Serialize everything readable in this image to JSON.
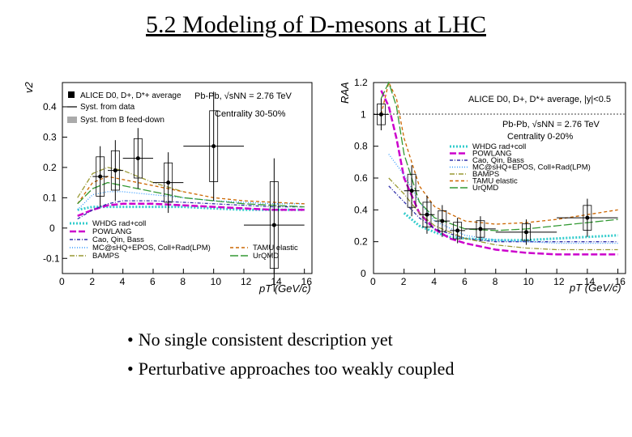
{
  "slide": {
    "title": "5.2 Modeling of D-mesons at LHC",
    "bullets": [
      "No single consistent description yet",
      "Perturbative approaches too weakly coupled"
    ]
  },
  "left_panel": {
    "ylabel": "v2",
    "xlabel": "pT (GeV/c)",
    "yticks": [
      "0.4",
      "0.3",
      "0.2",
      "0.1",
      "0",
      "-0.1"
    ],
    "xticks": [
      "0",
      "2",
      "4",
      "6",
      "8",
      "10",
      "12",
      "14",
      "16"
    ],
    "legend_top": [
      "ALICE D0, D+, D*+ average",
      "Syst. from data",
      "Syst. from B feed-down"
    ],
    "system": "Pb-Pb, √sNN = 2.76 TeV",
    "centrality": "Centrality 30-50%",
    "legend_bottom_left": [
      "WHDG rad+coll",
      "POWLANG",
      "Cao, Qin, Bass",
      "MC@sHQ+EPOS, Coll+Rad(LPM)",
      "BAMPS"
    ],
    "legend_bottom_right": [
      "TAMU elastic",
      "UrQMD"
    ]
  },
  "right_panel": {
    "ylabel": "RAA",
    "xlabel": "pT (GeV/c)",
    "yticks": [
      "1.2",
      "1",
      "0.8",
      "0.6",
      "0.4",
      "0.2",
      "0"
    ],
    "xticks": [
      "0",
      "2",
      "4",
      "6",
      "8",
      "10",
      "12",
      "14",
      "16"
    ],
    "header": "ALICE D0, D+, D*+ average, |y|<0.5",
    "system": "Pb-Pb, √sNN = 2.76 TeV",
    "centrality": "Centrality 0-20%",
    "legend": [
      "WHDG rad+coll",
      "POWLANG",
      "Cao, Qin, Bass",
      "MC@sHQ+EPOS, Coll+Rad(LPM)",
      "BAMPS",
      "TAMU elastic",
      "UrQMD"
    ]
  },
  "chart_data": [
    {
      "type": "scatter",
      "xlabel": "pT (GeV/c)",
      "ylabel": "v2",
      "xlim": [
        0,
        16.5
      ],
      "ylim": [
        -0.15,
        0.48
      ],
      "series": [
        {
          "name": "ALICE D0, D+, D*+ average",
          "points": [
            {
              "x": 2.5,
              "y": 0.17,
              "xerr": 0.5,
              "yerr": 0.05
            },
            {
              "x": 3.5,
              "y": 0.19,
              "xerr": 0.5,
              "yerr": 0.05
            },
            {
              "x": 5.0,
              "y": 0.23,
              "xerr": 1.0,
              "yerr": 0.05
            },
            {
              "x": 7.0,
              "y": 0.15,
              "xerr": 1.0,
              "yerr": 0.05
            },
            {
              "x": 10.0,
              "y": 0.27,
              "xerr": 2.0,
              "yerr": 0.09
            },
            {
              "x": 14.0,
              "y": 0.01,
              "xerr": 2.0,
              "yerr": 0.11
            }
          ]
        },
        {
          "name": "WHDG rad+coll",
          "color": "#33cccc",
          "x": [
            1,
            2,
            4,
            6,
            8,
            10,
            12,
            14,
            16
          ],
          "y": [
            0.06,
            0.07,
            0.07,
            0.07,
            0.07,
            0.065,
            0.06,
            0.06,
            0.06
          ]
        },
        {
          "name": "POWLANG",
          "color": "#cc00cc",
          "x": [
            1,
            2,
            3,
            4,
            6,
            8,
            10,
            12,
            14,
            16
          ],
          "y": [
            0.04,
            0.06,
            0.075,
            0.08,
            0.08,
            0.075,
            0.07,
            0.065,
            0.06,
            0.06
          ]
        },
        {
          "name": "Cao, Qin, Bass",
          "color": "#3333aa",
          "x": [
            1,
            2,
            3,
            4,
            6,
            8,
            10,
            12,
            14,
            16
          ],
          "y": [
            0.03,
            0.06,
            0.08,
            0.09,
            0.09,
            0.085,
            0.08,
            0.075,
            0.07,
            0.07
          ]
        },
        {
          "name": "MC@sHQ+EPOS, Coll+Rad(LPM)",
          "color": "#3399ff",
          "x": [
            1,
            2,
            3,
            4,
            6,
            8,
            10,
            12,
            14,
            16
          ],
          "y": [
            0.06,
            0.11,
            0.12,
            0.12,
            0.11,
            0.1,
            0.09,
            0.085,
            0.08,
            0.08
          ]
        },
        {
          "name": "BAMPS",
          "color": "#999933",
          "x": [
            1,
            2,
            3,
            4,
            5,
            6,
            8
          ],
          "y": [
            0.1,
            0.18,
            0.2,
            0.19,
            0.17,
            0.15,
            0.12
          ]
        },
        {
          "name": "TAMU elastic",
          "color": "#cc6600",
          "x": [
            1,
            2,
            3,
            4,
            6,
            8,
            10,
            12,
            14,
            16
          ],
          "y": [
            0.08,
            0.15,
            0.17,
            0.16,
            0.14,
            0.12,
            0.1,
            0.09,
            0.085,
            0.08
          ]
        },
        {
          "name": "UrQMD",
          "color": "#339933",
          "x": [
            1,
            2,
            3,
            4,
            6,
            8,
            10,
            12,
            14,
            16
          ],
          "y": [
            0.08,
            0.13,
            0.15,
            0.14,
            0.12,
            0.1,
            0.09,
            0.08,
            0.075,
            0.07
          ]
        }
      ]
    },
    {
      "type": "scatter",
      "xlabel": "pT (GeV/c)",
      "ylabel": "RAA",
      "xlim": [
        0,
        16.5
      ],
      "ylim": [
        0,
        1.2
      ],
      "series": [
        {
          "name": "ALICE D0, D+, D*+ average",
          "points": [
            {
              "x": 0.5,
              "y": 1.0,
              "xerr": 0.5,
              "yerr": 0.05
            },
            {
              "x": 2.5,
              "y": 0.52,
              "xerr": 0.5,
              "yerr": 0.08
            },
            {
              "x": 3.5,
              "y": 0.37,
              "xerr": 0.5,
              "yerr": 0.06
            },
            {
              "x": 4.5,
              "y": 0.33,
              "xerr": 0.5,
              "yerr": 0.05
            },
            {
              "x": 5.5,
              "y": 0.27,
              "xerr": 0.5,
              "yerr": 0.04
            },
            {
              "x": 7.0,
              "y": 0.28,
              "xerr": 1.0,
              "yerr": 0.04
            },
            {
              "x": 10.0,
              "y": 0.26,
              "xerr": 2.0,
              "yerr": 0.04
            },
            {
              "x": 14.0,
              "y": 0.35,
              "xerr": 2.0,
              "yerr": 0.06
            }
          ]
        },
        {
          "name": "WHDG rad+coll",
          "color": "#33cccc",
          "x": [
            2,
            3,
            4,
            5,
            6,
            8,
            10,
            12,
            14,
            16
          ],
          "y": [
            0.38,
            0.3,
            0.26,
            0.23,
            0.22,
            0.21,
            0.21,
            0.22,
            0.23,
            0.24
          ]
        },
        {
          "name": "POWLANG",
          "color": "#cc00cc",
          "x": [
            0.5,
            1,
            1.5,
            2,
            3,
            4,
            5,
            6,
            8,
            10,
            12,
            14,
            16
          ],
          "y": [
            1.15,
            1.05,
            0.85,
            0.6,
            0.38,
            0.28,
            0.22,
            0.19,
            0.15,
            0.13,
            0.12,
            0.12,
            0.12
          ]
        },
        {
          "name": "Cao, Qin, Bass",
          "color": "#3333aa",
          "x": [
            1,
            2,
            3,
            4,
            6,
            8,
            10,
            12,
            14,
            16
          ],
          "y": [
            0.55,
            0.45,
            0.35,
            0.28,
            0.22,
            0.2,
            0.2,
            0.2,
            0.2,
            0.2
          ]
        },
        {
          "name": "MC@sHQ+EPOS, Coll+Rad(LPM)",
          "color": "#3399ff",
          "x": [
            1,
            2,
            3,
            4,
            6,
            8,
            10,
            12,
            14,
            16
          ],
          "y": [
            0.75,
            0.62,
            0.45,
            0.33,
            0.24,
            0.21,
            0.2,
            0.19,
            0.19,
            0.19
          ]
        },
        {
          "name": "BAMPS",
          "color": "#999933",
          "x": [
            1,
            2,
            3,
            4,
            6,
            8,
            10,
            12,
            14,
            16
          ],
          "y": [
            0.6,
            0.5,
            0.38,
            0.3,
            0.22,
            0.18,
            0.16,
            0.15,
            0.15,
            0.15
          ]
        },
        {
          "name": "TAMU elastic",
          "color": "#cc6600",
          "x": [
            0.5,
            1,
            1.5,
            2,
            3,
            4,
            6,
            8,
            10,
            12,
            14,
            16
          ],
          "y": [
            1.0,
            1.2,
            1.1,
            0.85,
            0.55,
            0.42,
            0.33,
            0.31,
            0.32,
            0.34,
            0.37,
            0.4
          ]
        },
        {
          "name": "UrQMD",
          "color": "#339933",
          "x": [
            0.5,
            1,
            1.5,
            2,
            3,
            4,
            6,
            8,
            10,
            12,
            14,
            16
          ],
          "y": [
            1.1,
            1.2,
            1.05,
            0.75,
            0.45,
            0.35,
            0.28,
            0.27,
            0.28,
            0.3,
            0.32,
            0.34
          ]
        }
      ]
    }
  ]
}
